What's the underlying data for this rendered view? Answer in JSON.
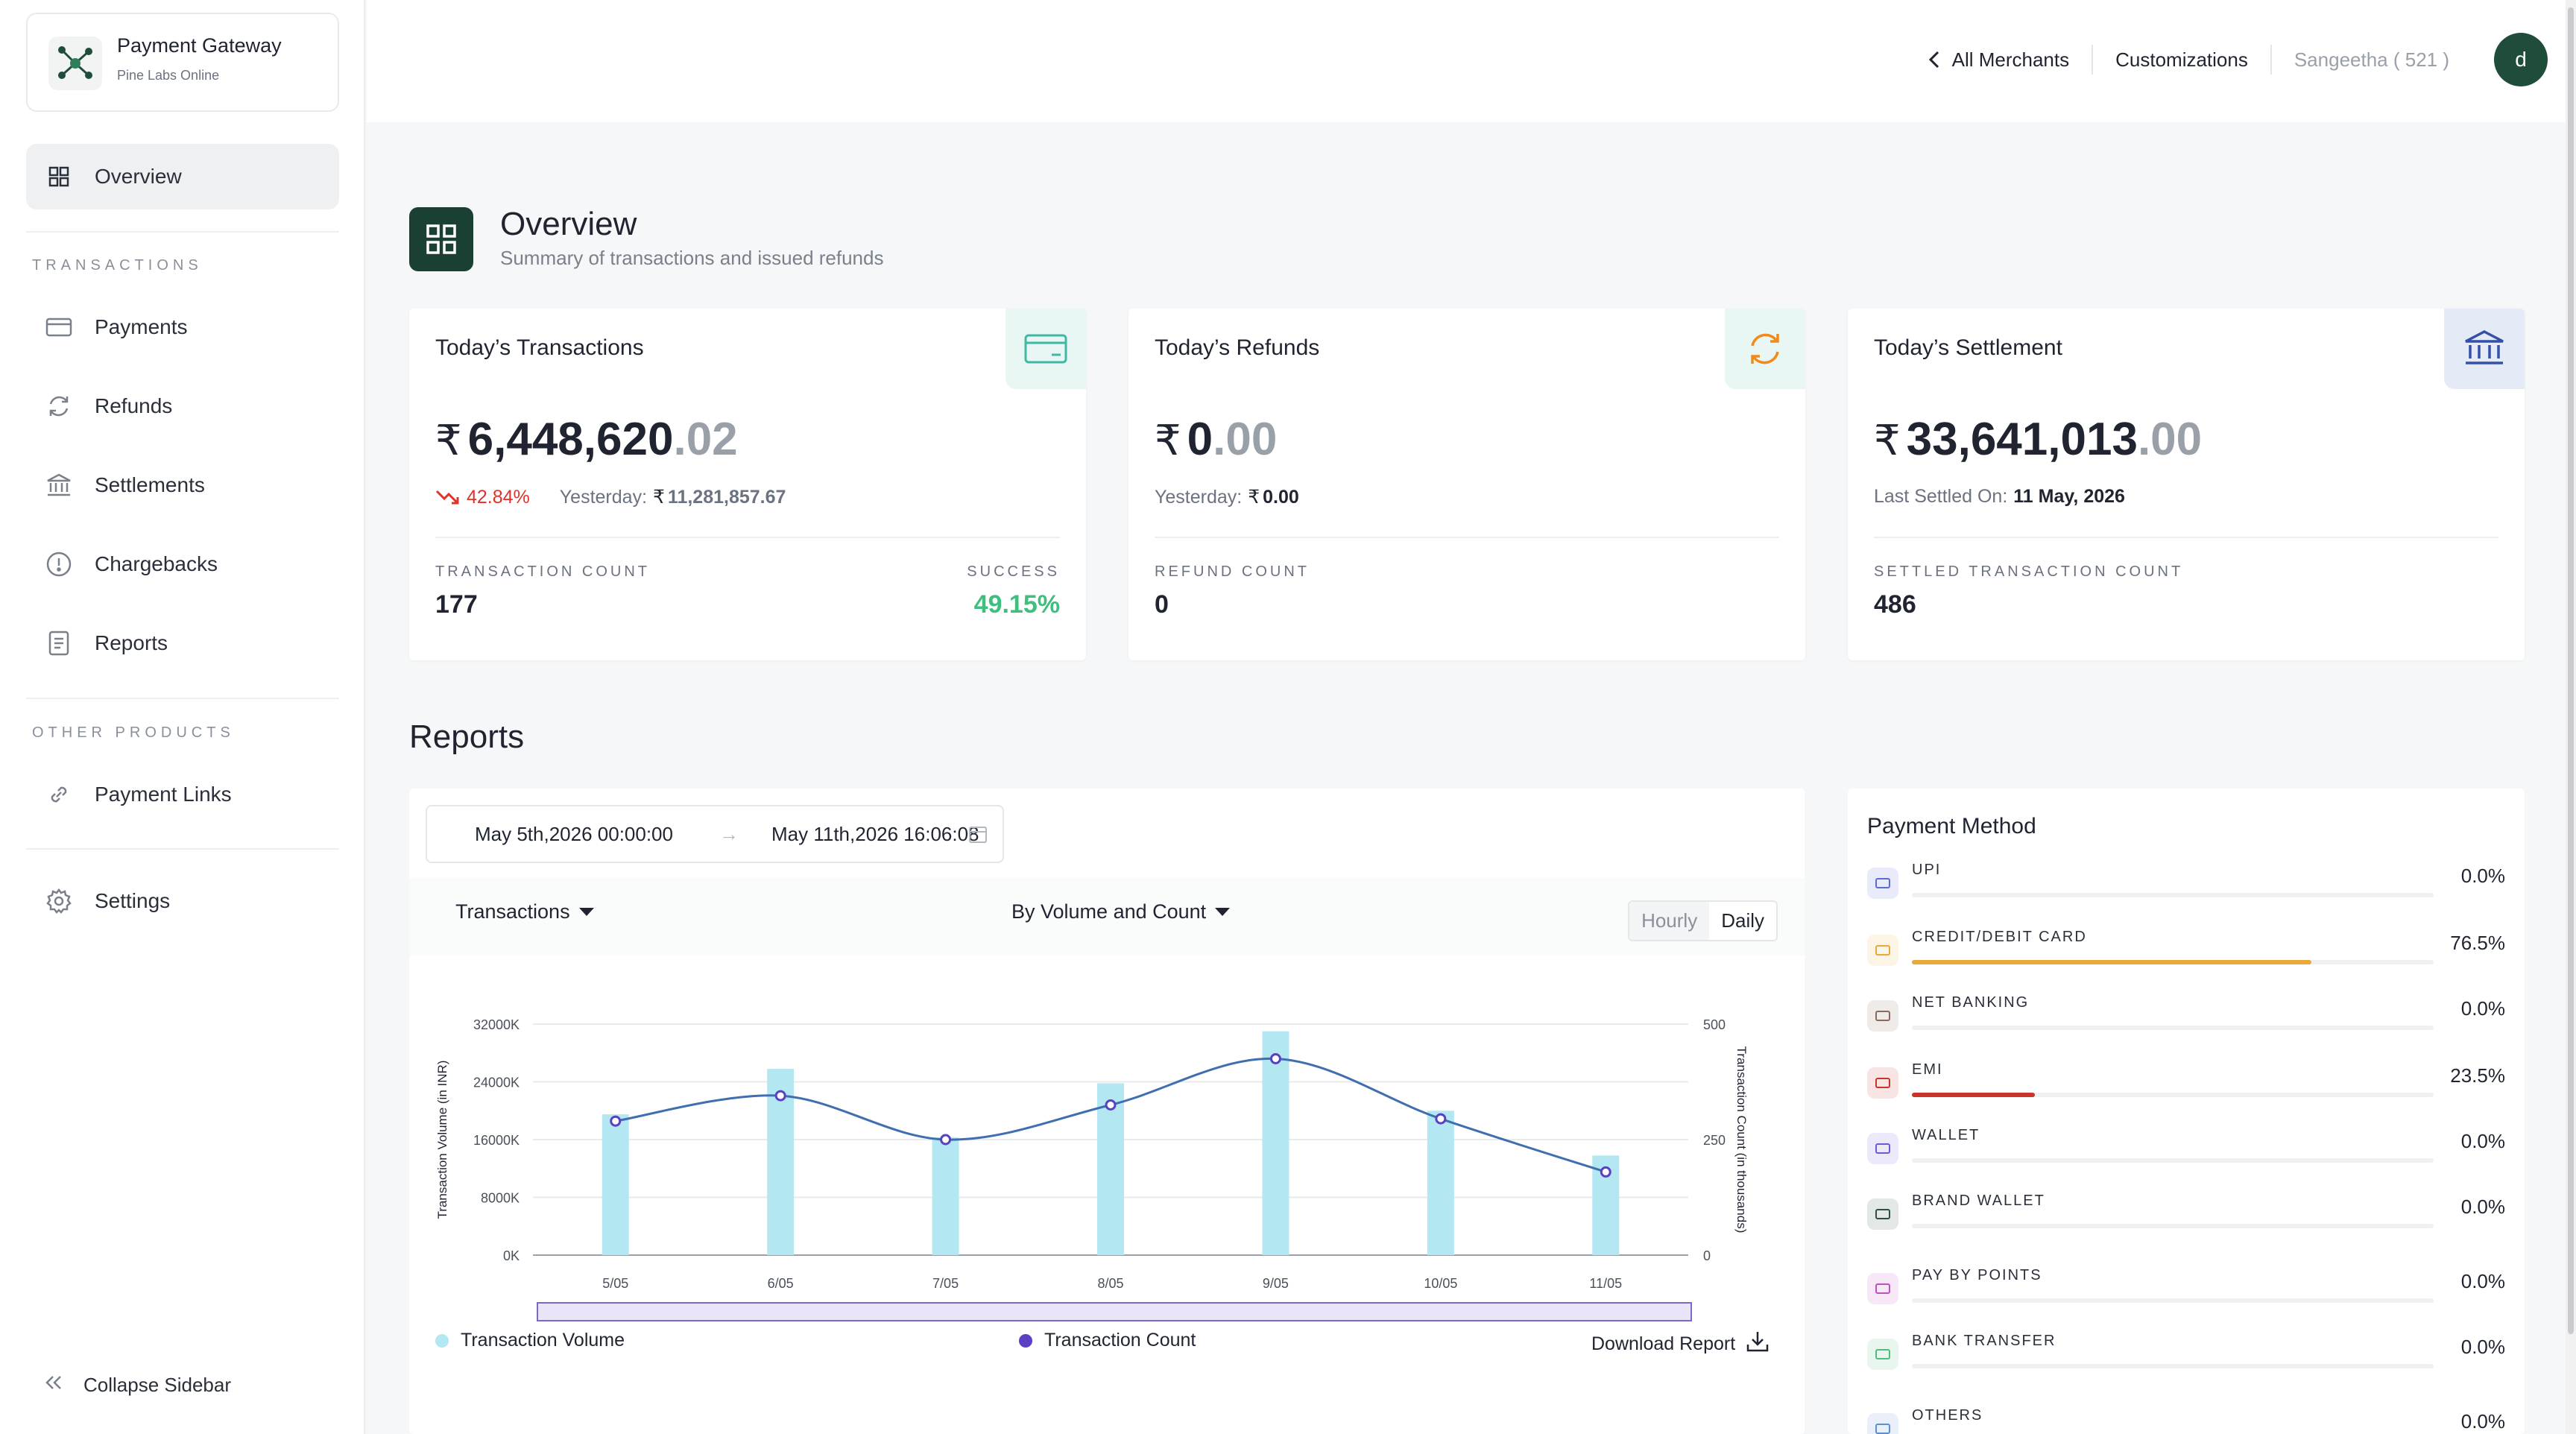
{
  "brand": {
    "title": "Payment Gateway",
    "subtitle": "Pine Labs Online"
  },
  "sidebar": {
    "overview": "Overview",
    "section_transactions": "TRANSACTIONS",
    "payments": "Payments",
    "refunds": "Refunds",
    "settlements": "Settlements",
    "chargebacks": "Chargebacks",
    "reports": "Reports",
    "section_other": "OTHER PRODUCTS",
    "payment_links": "Payment Links",
    "settings": "Settings",
    "collapse": "Collapse Sidebar"
  },
  "topbar": {
    "all_merchants": "All Merchants",
    "customizations": "Customizations",
    "user": "Sangeetha ( 521 )",
    "avatar_letter": "d"
  },
  "page": {
    "title": "Overview",
    "subtitle": "Summary of transactions and issued refunds"
  },
  "cards": {
    "transactions": {
      "title": "Today’s Transactions",
      "currency": "₹",
      "amount_int": "6,448,620",
      "amount_dec": ".02",
      "change": "42.84%",
      "yesterday_label": "Yesterday:",
      "yesterday_value": "11,281,857.67",
      "count_label": "TRANSACTION COUNT",
      "count_value": "177",
      "success_label": "SUCCESS",
      "success_value": "49.15%"
    },
    "refunds": {
      "title": "Today’s Refunds",
      "currency": "₹",
      "amount_int": "0",
      "amount_dec": ".00",
      "yesterday_label": "Yesterday:",
      "yesterday_value": "0.00",
      "count_label": "REFUND COUNT",
      "count_value": "0"
    },
    "settlement": {
      "title": "Today’s Settlement",
      "currency": "₹",
      "amount_int": "33,641,013",
      "amount_dec": ".00",
      "last_label": "Last Settled On:",
      "last_value": "11 May, 2026",
      "count_label": "SETTLED TRANSACTION COUNT",
      "count_value": "486"
    }
  },
  "reports": {
    "title": "Reports",
    "date_from": "May 5th,2026 00:00:00",
    "date_arrow": "→",
    "date_to": "May 11th,2026 16:06:08",
    "metric_select": "Transactions",
    "mode_select": "By Volume and Count",
    "toggle_hourly": "Hourly",
    "toggle_daily": "Daily",
    "legend_volume": "Transaction Volume",
    "legend_count": "Transaction Count",
    "download": "Download Report"
  },
  "chart_data": {
    "type": "bar",
    "categories": [
      "5/05",
      "6/05",
      "7/05",
      "8/05",
      "9/05",
      "10/05",
      "11/05"
    ],
    "series": [
      {
        "name": "Transaction Volume",
        "axis": "left",
        "type": "bar",
        "values": [
          19500,
          25800,
          16300,
          23800,
          31000,
          20000,
          13800
        ]
      },
      {
        "name": "Transaction Count",
        "axis": "right",
        "type": "line",
        "values": [
          290,
          345,
          250,
          325,
          425,
          295,
          180
        ]
      }
    ],
    "ylabel": "Transaction Volume (in INR)",
    "y2label": "Transaction Count (in thousands)",
    "ylim": [
      0,
      32000
    ],
    "y2lim": [
      0,
      500
    ],
    "yticks": [
      "0K",
      "8000K",
      "16000K",
      "24000K",
      "32000K"
    ],
    "y2ticks": [
      "0",
      "250",
      "500"
    ],
    "colors": {
      "bar": "#b3e8f2",
      "line": "#3f6fae",
      "point": "#5b3fc4"
    }
  },
  "payment_method": {
    "title": "Payment Method",
    "items": [
      {
        "label": "UPI",
        "value": "0.0%",
        "pct": 0,
        "icon": "upi-icon",
        "color": "#5b6cd9"
      },
      {
        "label": "CREDIT/DEBIT CARD",
        "value": "76.5%",
        "pct": 76.5,
        "icon": "card-icon",
        "color": "#e8a93a"
      },
      {
        "label": "NET BANKING",
        "value": "0.0%",
        "pct": 0,
        "icon": "bank-icon",
        "color": "#8a6a5a"
      },
      {
        "label": "EMI",
        "value": "23.5%",
        "pct": 23.5,
        "icon": "emi-icon",
        "color": "#c9352b"
      },
      {
        "label": "WALLET",
        "value": "0.0%",
        "pct": 0,
        "icon": "wallet-icon",
        "color": "#6b5bd9"
      },
      {
        "label": "BRAND WALLET",
        "value": "0.0%",
        "pct": 0,
        "icon": "brand-wallet-icon",
        "color": "#2f4f44"
      },
      {
        "label": "PAY BY POINTS",
        "value": "0.0%",
        "pct": 0,
        "icon": "points-icon",
        "color": "#c04fc0"
      },
      {
        "label": "BANK TRANSFER",
        "value": "0.0%",
        "pct": 0,
        "icon": "bank-transfer-icon",
        "color": "#4fbf7f"
      },
      {
        "label": "OTHERS",
        "value": "0.0%",
        "pct": 0,
        "icon": "others-icon",
        "color": "#5a8fd9"
      }
    ]
  }
}
